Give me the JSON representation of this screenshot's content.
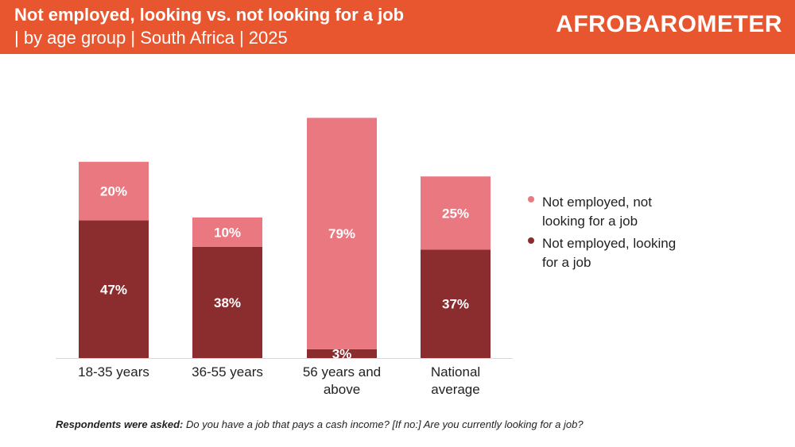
{
  "header": {
    "title": "Not employed, looking vs. not looking for a job",
    "subtitle": "| by age group | South Africa | 2025",
    "logo_text": "AFROBAROMETER"
  },
  "colors": {
    "header_bg": "#e8562f",
    "looking": "#8b2c2f",
    "not_looking": "#ea7880"
  },
  "chart_data": {
    "type": "bar",
    "stacked": true,
    "categories": [
      "18-35 years",
      "36-55 years",
      "56 years and above",
      "National average"
    ],
    "category_lines": [
      [
        "18-35 years"
      ],
      [
        "36-55 years"
      ],
      [
        "56 years and",
        "above"
      ],
      [
        "National",
        "average"
      ]
    ],
    "series": [
      {
        "name": "Not employed, looking for a job",
        "values": [
          47,
          38,
          3,
          37
        ],
        "labels": [
          "47%",
          "38%",
          "3%",
          "37%"
        ]
      },
      {
        "name": "Not employed, not looking for a job",
        "values": [
          20,
          10,
          79,
          25
        ],
        "labels": [
          "20%",
          "10%",
          "79%",
          "25%"
        ]
      }
    ],
    "ylim": [
      0,
      82
    ],
    "grid": false,
    "legend_position": "right"
  },
  "legend": {
    "items": [
      {
        "lines": [
          "Not employed, not",
          "looking for a job"
        ]
      },
      {
        "lines": [
          "Not employed, looking",
          "for a job"
        ]
      }
    ]
  },
  "footnote": {
    "label": "Respondents were asked:",
    "text": " Do you have a job that pays a cash income? [If no:] Are you currently looking for a job?"
  }
}
